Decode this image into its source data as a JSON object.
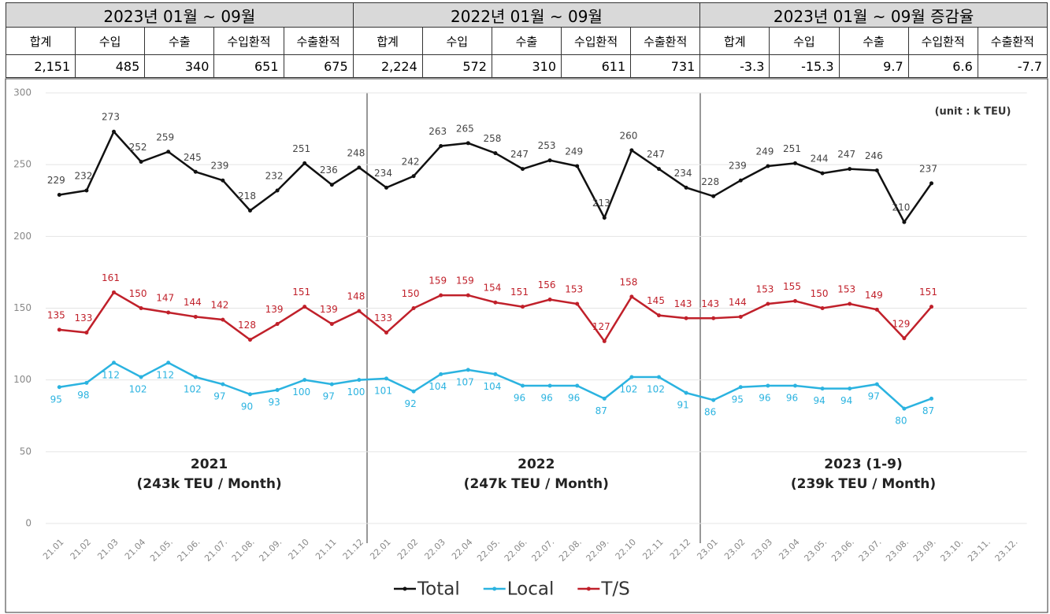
{
  "table": {
    "groups": [
      "2023년 01월 ~ 09월",
      "2022년 01월 ~ 09월",
      "2023년 01월 ~ 09월 증감율"
    ],
    "columns": [
      "합계",
      "수입",
      "수출",
      "수입환적",
      "수출환적",
      "합계",
      "수입",
      "수출",
      "수입환적",
      "수출환적",
      "합계",
      "수입",
      "수출",
      "수입환적",
      "수출환적"
    ],
    "row": [
      "2,151",
      "485",
      "340",
      "651",
      "675",
      "2,224",
      "572",
      "310",
      "611",
      "731",
      "-3.3",
      "-15.3",
      "9.7",
      "6.6",
      "-7.7"
    ]
  },
  "chart_data": {
    "type": "line",
    "unit_label": "(unit : k TEU)",
    "periods": [
      {
        "year": "2021",
        "average": "(243k TEU / Month)"
      },
      {
        "year": "2022",
        "average": "(247k TEU / Month)"
      },
      {
        "year": "2023 (1-9)",
        "average": "(239k TEU / Month)"
      }
    ],
    "categories": [
      "21.01",
      "21.02",
      "21.03",
      "21.04",
      "21.05.",
      "21.06.",
      "21.07.",
      "21.08.",
      "21.09.",
      "21.10",
      "21.11",
      "21.12",
      "22.01",
      "22.02",
      "22.03",
      "22.04",
      "22.05.",
      "22.06.",
      "22.07.",
      "22.08.",
      "22.09.",
      "22.10",
      "22.11",
      "22.12",
      "23.01",
      "23.02",
      "23.03",
      "23.04",
      "23.05.",
      "23.06.",
      "23.07.",
      "23.08.",
      "23.09.",
      "23.10.",
      "23.11.",
      "23.12."
    ],
    "series": [
      {
        "name": "Total",
        "color": "#111111",
        "label_color": "#444444",
        "label_position": "above",
        "values": [
          229,
          232,
          273,
          252,
          259,
          245,
          239,
          218,
          232,
          251,
          236,
          248,
          234,
          242,
          263,
          265,
          258,
          247,
          253,
          249,
          213,
          260,
          247,
          234,
          228,
          239,
          249,
          251,
          244,
          247,
          246,
          210,
          237,
          null,
          null,
          null
        ]
      },
      {
        "name": "Local",
        "color": "#2bb3e0",
        "label_color": "#2bb3e0",
        "label_position": "below",
        "values": [
          95,
          98,
          112,
          102,
          112,
          102,
          97,
          90,
          93,
          100,
          97,
          100,
          101,
          92,
          104,
          107,
          104,
          96,
          96,
          96,
          87,
          102,
          102,
          91,
          86,
          95,
          96,
          96,
          94,
          94,
          97,
          80,
          87,
          null,
          null,
          null
        ]
      },
      {
        "name": "T/S",
        "color": "#c0202a",
        "label_color": "#c0202a",
        "label_position": "above",
        "values": [
          135,
          133,
          161,
          150,
          147,
          144,
          142,
          128,
          139,
          151,
          139,
          148,
          133,
          150,
          159,
          159,
          154,
          151,
          156,
          153,
          127,
          158,
          145,
          143,
          143,
          144,
          153,
          155,
          150,
          153,
          149,
          129,
          151,
          null,
          null,
          null
        ]
      }
    ],
    "ylim": [
      0,
      300
    ],
    "yticks": [
      0,
      50,
      100,
      150,
      200,
      250,
      300
    ],
    "grid": true,
    "legend": "bottom"
  }
}
